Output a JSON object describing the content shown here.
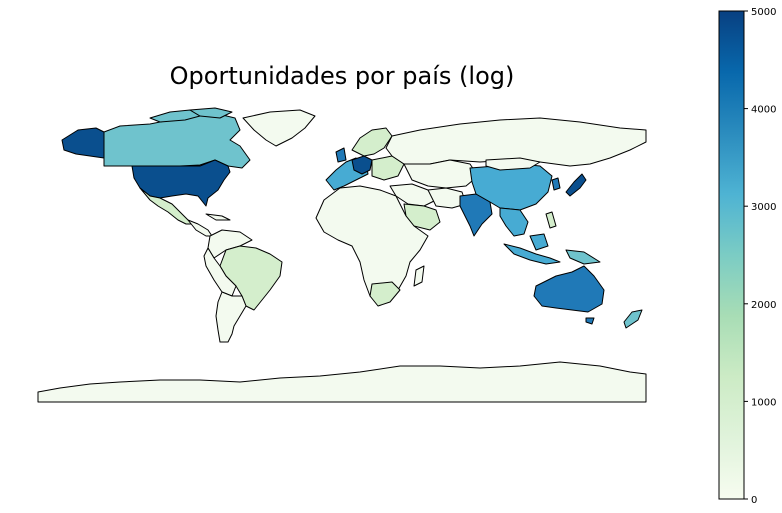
{
  "title": "Oportunidades por país (log)",
  "colorbar": {
    "ticks": [
      "0",
      "1000",
      "2000",
      "3000",
      "4000",
      "5000"
    ],
    "min": 0,
    "max": 5000,
    "colormap": [
      "#f7fcf0",
      "#e0f3db",
      "#ccebc5",
      "#a8ddb5",
      "#7bccc4",
      "#4eb3d3",
      "#2b8cbe",
      "#0868ac",
      "#084081"
    ]
  },
  "colors": {
    "ocean": "#ffffff",
    "border": "#000000",
    "none": "#f7fcf0",
    "low": "#d4eecc",
    "mid": "#6fc3cd",
    "midhigh": "#47abd3",
    "high": "#2079b7",
    "top": "#0a4f8e"
  }
}
